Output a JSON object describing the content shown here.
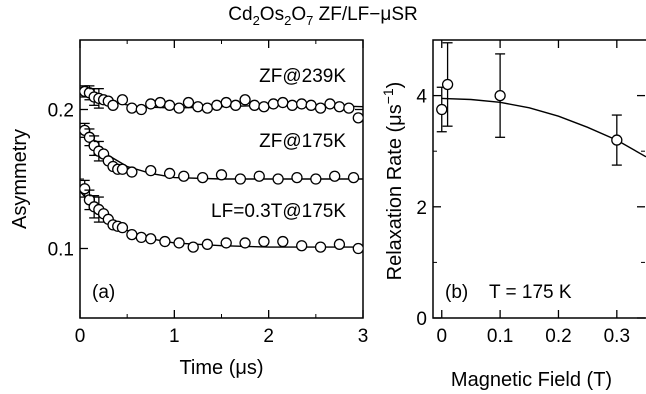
{
  "title": {
    "parts": [
      "Cd",
      "2",
      "Os",
      "2",
      "O",
      "7",
      " ZF/LF−μSR"
    ]
  },
  "chart_data": [
    {
      "type": "scatter",
      "panel_label": "(a)",
      "xlabel": "Time (μs)",
      "ylabel": "Asymmetry",
      "xlim": [
        0,
        3
      ],
      "ylim": [
        0.05,
        0.25
      ],
      "xticks": [
        0,
        1,
        2,
        3
      ],
      "yticks": [
        0.1,
        0.2
      ],
      "grid": false,
      "series": [
        {
          "name": "ZF@239K",
          "points": [
            [
              0.05,
              0.213
            ],
            [
              0.1,
              0.212
            ],
            [
              0.15,
              0.209
            ],
            [
              0.2,
              0.208
            ],
            [
              0.25,
              0.207
            ],
            [
              0.3,
              0.206
            ],
            [
              0.35,
              0.203
            ],
            [
              0.45,
              0.207
            ],
            [
              0.55,
              0.201
            ],
            [
              0.65,
              0.2
            ],
            [
              0.75,
              0.204
            ],
            [
              0.85,
              0.205
            ],
            [
              0.95,
              0.203
            ],
            [
              1.05,
              0.201
            ],
            [
              1.15,
              0.205
            ],
            [
              1.25,
              0.202
            ],
            [
              1.35,
              0.201
            ],
            [
              1.45,
              0.203
            ],
            [
              1.55,
              0.205
            ],
            [
              1.65,
              0.203
            ],
            [
              1.75,
              0.207
            ],
            [
              1.85,
              0.203
            ],
            [
              1.95,
              0.202
            ],
            [
              2.05,
              0.204
            ],
            [
              2.15,
              0.205
            ],
            [
              2.25,
              0.203
            ],
            [
              2.35,
              0.204
            ],
            [
              2.45,
              0.203
            ],
            [
              2.55,
              0.201
            ],
            [
              2.65,
              0.204
            ],
            [
              2.75,
              0.202
            ],
            [
              2.85,
              0.201
            ],
            [
              2.95,
              0.194
            ]
          ],
          "errors_at_start": [
            0.004,
            0.005,
            0.006,
            0.007
          ],
          "fit": [
            [
              0,
              0.212
            ],
            [
              0.3,
              0.206
            ],
            [
              0.6,
              0.202
            ],
            [
              1.0,
              0.201
            ],
            [
              1.5,
              0.202
            ],
            [
              2.0,
              0.203
            ],
            [
              2.5,
              0.203
            ],
            [
              3.0,
              0.202
            ]
          ]
        },
        {
          "name": "ZF@175K",
          "points": [
            [
              0.05,
              0.185
            ],
            [
              0.1,
              0.18
            ],
            [
              0.15,
              0.174
            ],
            [
              0.2,
              0.17
            ],
            [
              0.25,
              0.168
            ],
            [
              0.3,
              0.163
            ],
            [
              0.35,
              0.159
            ],
            [
              0.4,
              0.157
            ],
            [
              0.45,
              0.157
            ],
            [
              0.55,
              0.155
            ],
            [
              0.75,
              0.156
            ],
            [
              0.95,
              0.154
            ],
            [
              1.1,
              0.152
            ],
            [
              1.3,
              0.151
            ],
            [
              1.5,
              0.153
            ],
            [
              1.7,
              0.15
            ],
            [
              1.9,
              0.152
            ],
            [
              2.1,
              0.15
            ],
            [
              2.3,
              0.151
            ],
            [
              2.5,
              0.15
            ],
            [
              2.7,
              0.152
            ],
            [
              2.9,
              0.151
            ]
          ],
          "errors_at_start": [
            0.005,
            0.006,
            0.007,
            0.007
          ],
          "fit": [
            [
              0,
              0.187
            ],
            [
              0.15,
              0.176
            ],
            [
              0.3,
              0.167
            ],
            [
              0.5,
              0.159
            ],
            [
              0.75,
              0.154
            ],
            [
              1.0,
              0.151
            ],
            [
              1.5,
              0.15
            ],
            [
              2.0,
              0.15
            ],
            [
              2.5,
              0.15
            ],
            [
              3.0,
              0.15
            ]
          ]
        },
        {
          "name": "LF=0.3T@175K",
          "points": [
            [
              0.05,
              0.143
            ],
            [
              0.1,
              0.135
            ],
            [
              0.15,
              0.13
            ],
            [
              0.2,
              0.128
            ],
            [
              0.25,
              0.125
            ],
            [
              0.3,
              0.121
            ],
            [
              0.35,
              0.117
            ],
            [
              0.4,
              0.116
            ],
            [
              0.45,
              0.115
            ],
            [
              0.55,
              0.11
            ],
            [
              0.65,
              0.108
            ],
            [
              0.75,
              0.107
            ],
            [
              0.9,
              0.105
            ],
            [
              1.05,
              0.104
            ],
            [
              1.2,
              0.101
            ],
            [
              1.35,
              0.103
            ],
            [
              1.55,
              0.104
            ],
            [
              1.75,
              0.104
            ],
            [
              1.95,
              0.105
            ],
            [
              2.15,
              0.105
            ],
            [
              2.35,
              0.102
            ],
            [
              2.55,
              0.101
            ],
            [
              2.75,
              0.103
            ],
            [
              2.95,
              0.1
            ]
          ],
          "errors_at_start": [
            0.006,
            0.007,
            0.008,
            0.009
          ],
          "fit": [
            [
              0,
              0.141
            ],
            [
              0.15,
              0.13
            ],
            [
              0.3,
              0.121
            ],
            [
              0.5,
              0.113
            ],
            [
              0.75,
              0.107
            ],
            [
              1.0,
              0.104
            ],
            [
              1.5,
              0.102
            ],
            [
              2.0,
              0.101
            ],
            [
              2.5,
              0.101
            ],
            [
              3.0,
              0.101
            ]
          ]
        }
      ]
    },
    {
      "type": "scatter",
      "panel_label": "(b)",
      "annotation": "T = 175 K",
      "xlabel": "Magnetic Field (T)",
      "ylabel": "Relaxation Rate (μs",
      "ylabel_sup": "−1",
      "ylabel_end": ")",
      "xlim": [
        -0.015,
        0.35
      ],
      "ylim": [
        0,
        5
      ],
      "xticks": [
        0,
        0.1,
        0.2,
        0.3
      ],
      "xtick_labels": [
        "0",
        "0.1",
        "0.2",
        "0.3"
      ],
      "yticks": [
        0,
        2,
        4
      ],
      "grid": false,
      "points": [
        {
          "x": 0.0,
          "y": 3.75,
          "err": 0.4
        },
        {
          "x": 0.01,
          "y": 4.2,
          "err": 0.75
        },
        {
          "x": 0.1,
          "y": 4.0,
          "err": 0.75
        },
        {
          "x": 0.3,
          "y": 3.2,
          "err": 0.45
        }
      ],
      "fit": [
        [
          0,
          3.95
        ],
        [
          0.05,
          3.93
        ],
        [
          0.1,
          3.88
        ],
        [
          0.15,
          3.78
        ],
        [
          0.2,
          3.63
        ],
        [
          0.25,
          3.43
        ],
        [
          0.3,
          3.2
        ],
        [
          0.35,
          2.9
        ]
      ]
    }
  ]
}
